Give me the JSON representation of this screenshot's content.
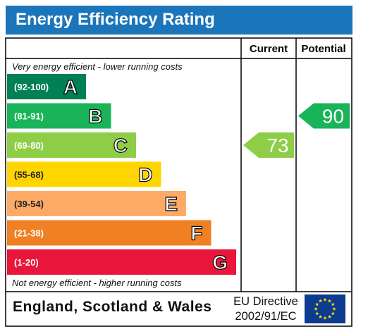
{
  "header": {
    "title": "Energy Efficiency Rating"
  },
  "columns": {
    "current": "Current",
    "potential": "Potential"
  },
  "captions": {
    "top": "Very energy efficient - lower running costs",
    "bottom": "Not energy efficient - higher running costs"
  },
  "chart_data": {
    "type": "bar",
    "bands": [
      {
        "range": "(92-100)",
        "letter": "A",
        "color": "#008054"
      },
      {
        "range": "(81-91)",
        "letter": "B",
        "color": "#19b459"
      },
      {
        "range": "(69-80)",
        "letter": "C",
        "color": "#8dce46"
      },
      {
        "range": "(55-68)",
        "letter": "D",
        "color": "#ffd500"
      },
      {
        "range": "(39-54)",
        "letter": "E",
        "color": "#fcaa65"
      },
      {
        "range": "(21-38)",
        "letter": "F",
        "color": "#ef8023"
      },
      {
        "range": "(1-20)",
        "letter": "G",
        "color": "#e9153b"
      }
    ],
    "current": {
      "value": 73,
      "band": "C",
      "color": "#8dce46"
    },
    "potential": {
      "value": 90,
      "band": "B",
      "color": "#19b459"
    }
  },
  "footer": {
    "region": "England, Scotland & Wales",
    "directive_line1": "EU Directive",
    "directive_line2": "2002/91/EC"
  },
  "colors": {
    "header_bg": "#1b75bb",
    "eu_flag_bg": "#0d3b8f",
    "eu_star": "#ffdd00"
  }
}
